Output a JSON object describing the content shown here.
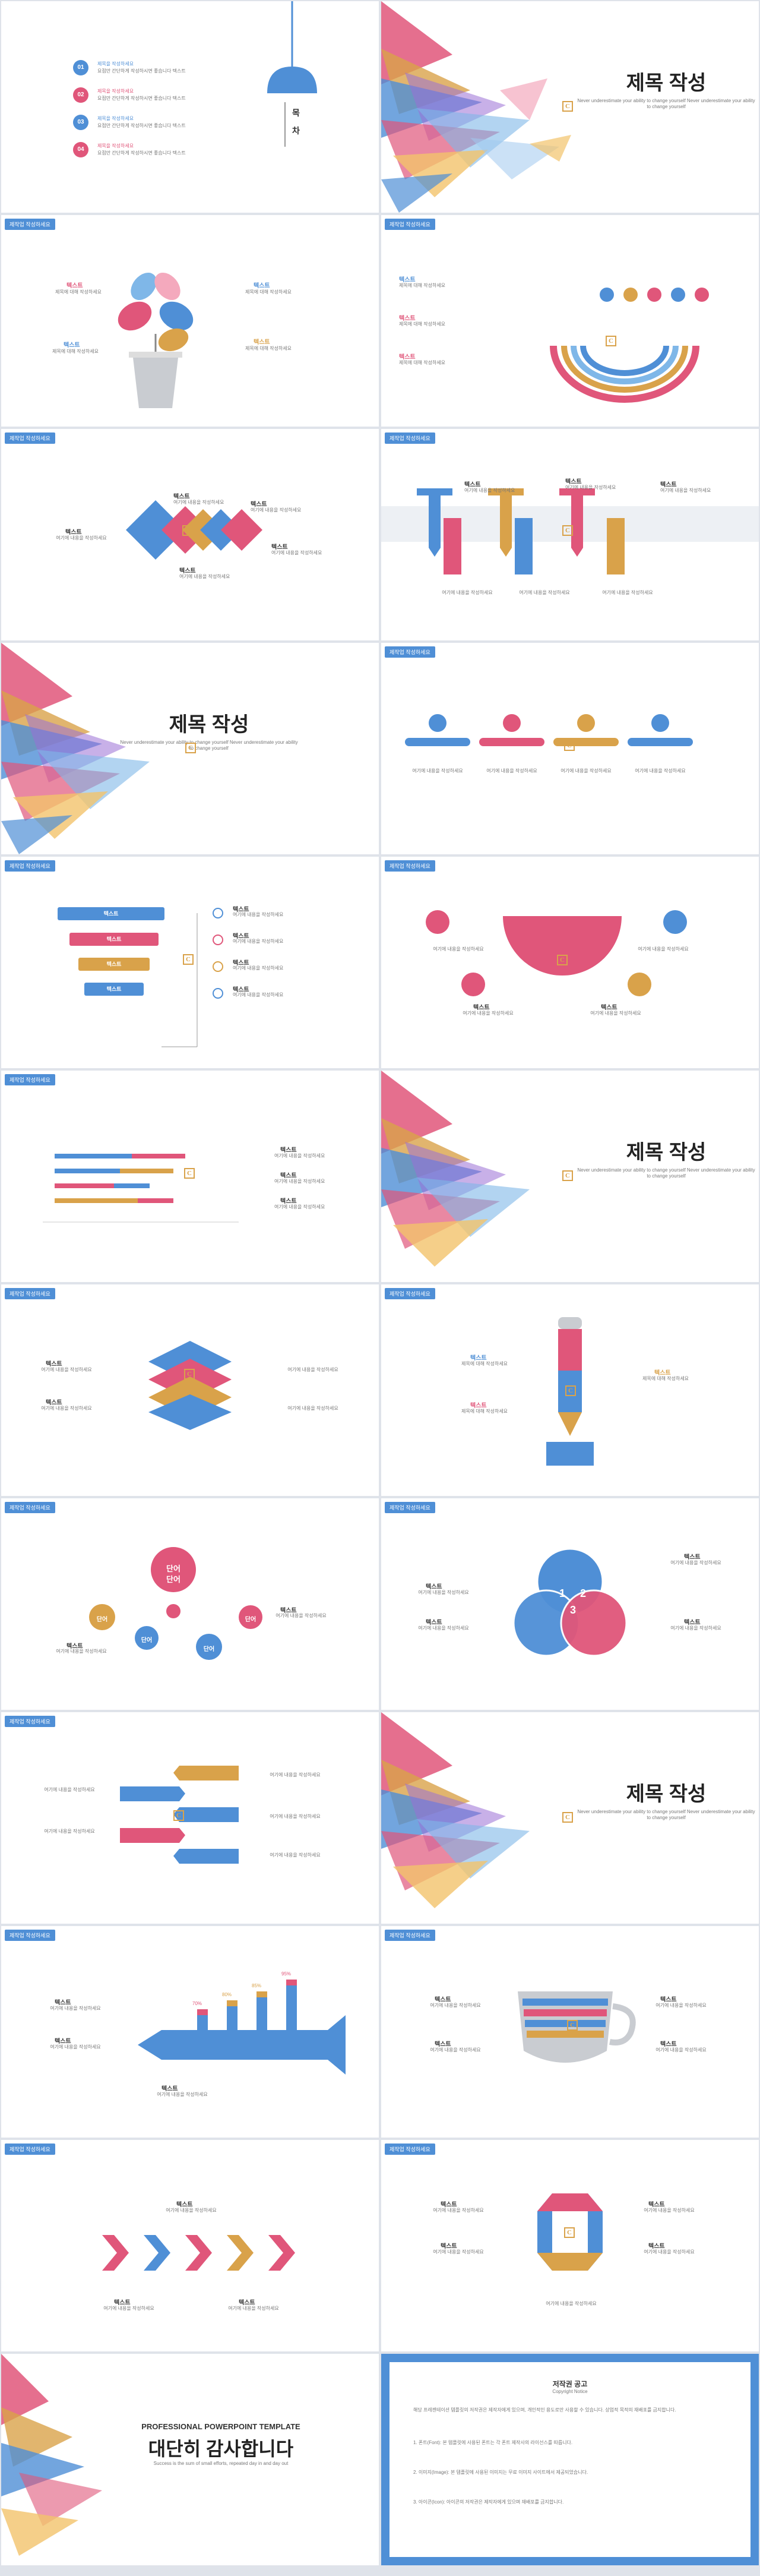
{
  "colors": {
    "blue": "#4f8fd6",
    "pink": "#e0567a",
    "gold": "#d9a24a",
    "gray": "#b8bcc4"
  },
  "common": {
    "tag": "제작업 작성하세요",
    "title_label": "텍스트",
    "desc": "제목에 대해 작성하세요",
    "desc2": "여기에 내용을 작성하세요",
    "logo": "C"
  },
  "toc": {
    "heading1": "목",
    "heading2": "차",
    "items": [
      {
        "num": "01",
        "title": "제목을 작성하세요",
        "text": "요점만 간단하게 작성하시면 좋습니다 텍스트"
      },
      {
        "num": "02",
        "title": "제목을 작성하세요",
        "text": "요점만 간단하게 작성하시면 좋습니다 텍스트"
      },
      {
        "num": "03",
        "title": "제목을 작성하세요",
        "text": "요점만 간단하게 작성하시면 좋습니다 텍스트"
      },
      {
        "num": "04",
        "title": "제목을 작성하세요",
        "text": "요점만 간단하게 작성하시면 좋습니다 텍스트"
      }
    ]
  },
  "section": {
    "title": "제목 작성",
    "subtitle": "Never underestimate your ability to change yourself Never underestimate your ability to change yourself"
  },
  "venn": {
    "n1": "1",
    "n2": "2",
    "n3": "3"
  },
  "bubbles": {
    "center1": "단어",
    "center2": "단어",
    "small": "단어"
  },
  "bars": {
    "labels": [
      "70%",
      "80%",
      "85%",
      "95%"
    ]
  },
  "closing": {
    "eyebrow": "PROFESSIONAL POWERPOINT TEMPLATE",
    "title": "대단히 감사합니다",
    "sub": "Success is the sum of small efforts, repeated day in and day out"
  },
  "copyright": {
    "title": "저작권 공고",
    "subtitle": "Copyright Notice",
    "p1": "해당 프레젠테이션 템플릿의 저작권은 제작자에게 있으며, 개인적인 용도로만 사용할 수 있습니다. 상업적 목적의 재배포를 금지합니다.",
    "p2": "1. 폰트(Font): 본 템플릿에 사용된 폰트는 각 폰트 제작사의 라이선스를 따릅니다.",
    "p3": "2. 이미지(Image): 본 템플릿에 사용된 이미지는 무료 이미지 사이트에서 제공되었습니다.",
    "p4": "3. 아이콘(Icon): 아이콘의 저작권은 제작자에게 있으며 재배포를 금지합니다."
  }
}
